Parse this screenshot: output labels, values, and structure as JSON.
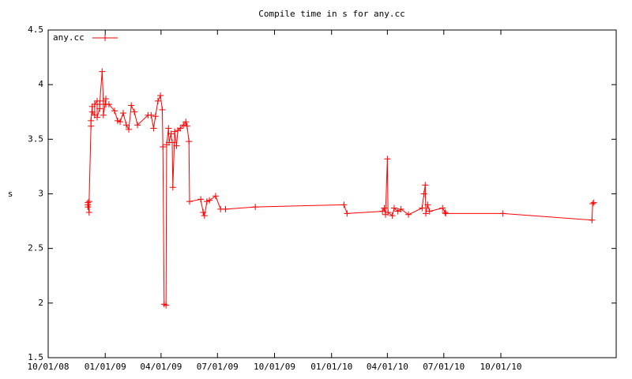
{
  "chart_data": {
    "type": "line",
    "title": "Compile time in s for any.cc",
    "y_label": "s",
    "legend": "top-left",
    "grid": false,
    "x": [
      "12/04/08",
      "12/04/08",
      "12/04/08",
      "12/06/08",
      "12/06/08",
      "12/09/08",
      "12/09/08",
      "12/11/08",
      "12/11/08",
      "12/15/08",
      "12/15/08",
      "12/19/08",
      "12/19/08",
      "12/23/08",
      "12/23/08",
      "12/27/08",
      "12/29/08",
      "12/29/08",
      "01/02/09",
      "01/02/09",
      "01/07/09",
      "01/16/09",
      "01/21/09",
      "01/25/09",
      "01/30/09",
      "02/04/09",
      "02/08/09",
      "02/12/09",
      "02/17/09",
      "02/22/09",
      "03/11/09",
      "03/16/09",
      "03/20/09",
      "03/23/09",
      "03/27/09",
      "03/31/09",
      "04/03/09",
      "04/04/09",
      "04/06/09",
      "04/09/09",
      "04/10/09",
      "04/13/09",
      "04/14/09",
      "04/17/09",
      "04/19/09",
      "04/20/09",
      "04/23/09",
      "04/26/09",
      "04/28/09",
      "05/02/09",
      "05/07/09",
      "05/11/09",
      "05/13/09",
      "05/16/09",
      "05/17/09",
      "06/04/09",
      "06/08/09",
      "06/10/09",
      "06/14/09",
      "06/18/09",
      "06/28/09",
      "07/06/09",
      "07/14/09",
      "08/31/09",
      "01/21/10",
      "01/26/10",
      "03/24/10",
      "03/27/10",
      "03/29/10",
      "04/01/10",
      "04/02/10",
      "04/09/10",
      "04/12/10",
      "04/18/10",
      "04/23/10",
      "05/05/10",
      "05/27/10",
      "05/30/10",
      "06/01/10",
      "06/02/10",
      "06/05/10",
      "06/08/10",
      "06/29/10",
      "07/03/10",
      "07/04/10",
      "10/04/10",
      "02/25/11",
      "02/26/11",
      "02/28/11"
    ],
    "series": [
      {
        "name": "any.cc",
        "color": "#ff0000",
        "values": [
          2.9,
          2.88,
          2.92,
          2.83,
          2.93,
          3.62,
          3.67,
          3.8,
          3.75,
          3.72,
          3.82,
          3.85,
          3.7,
          3.78,
          3.82,
          4.12,
          3.85,
          3.72,
          3.87,
          3.82,
          3.82,
          3.76,
          3.67,
          3.66,
          3.74,
          3.63,
          3.59,
          3.81,
          3.75,
          3.63,
          3.72,
          3.72,
          3.6,
          3.71,
          3.85,
          3.9,
          3.77,
          3.43,
          1.99,
          1.98,
          3.45,
          3.6,
          3.47,
          3.55,
          3.47,
          3.06,
          3.57,
          3.44,
          3.58,
          3.6,
          3.63,
          3.66,
          3.62,
          3.48,
          2.93,
          2.95,
          2.83,
          2.8,
          2.93,
          2.94,
          2.98,
          2.86,
          2.86,
          2.88,
          2.9,
          2.82,
          2.84,
          2.87,
          2.81,
          3.32,
          2.83,
          2.8,
          2.87,
          2.84,
          2.86,
          2.81,
          2.87,
          3.0,
          3.08,
          2.82,
          2.9,
          2.84,
          2.87,
          2.83,
          2.82,
          2.82,
          2.76,
          2.91,
          2.92
        ]
      }
    ],
    "xlim": [
      "10/01/08",
      "04/05/11"
    ],
    "xticks": [
      "10/01/08",
      "01/01/09",
      "04/01/09",
      "07/01/09",
      "10/01/09",
      "01/01/10",
      "04/01/10",
      "07/01/10",
      "10/01/10"
    ],
    "ylim": [
      1.5,
      4.5
    ],
    "yticks": [
      1.5,
      2,
      2.5,
      3,
      3.5,
      4,
      4.5
    ]
  }
}
